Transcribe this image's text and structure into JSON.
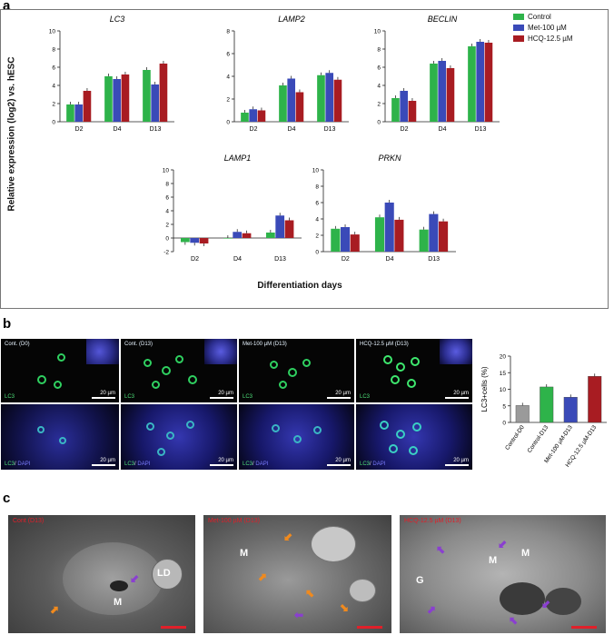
{
  "figure": {
    "panel_a": "a",
    "panel_b": "b",
    "panel_c": "c",
    "ylabel_a": "Relative expression (log2) vs. hESC",
    "xlabel_a": "Differentiation days"
  },
  "legend": [
    {
      "label": "Control",
      "color": "#2eb34a"
    },
    {
      "label": "Met-100 µM",
      "color": "#3a4ab8"
    },
    {
      "label": "HCQ-12.5 µM",
      "color": "#a81c22"
    }
  ],
  "colors": {
    "control": "#2eb34a",
    "met": "#3a4ab8",
    "hcq": "#a81c22",
    "gray": "#9a9a9a"
  },
  "chart_data": [
    {
      "type": "bar",
      "title": "LC3",
      "categories": [
        "D2",
        "D4",
        "D13"
      ],
      "ylim": [
        0,
        10
      ],
      "ticks": [
        0,
        2,
        4,
        6,
        8,
        10
      ],
      "series": [
        {
          "name": "Control",
          "values": [
            1.9,
            5.0,
            5.7
          ]
        },
        {
          "name": "Met-100 µM",
          "values": [
            1.9,
            4.7,
            4.1
          ]
        },
        {
          "name": "HCQ-12.5 µM",
          "values": [
            3.4,
            5.2,
            6.4
          ]
        }
      ]
    },
    {
      "type": "bar",
      "title": "LAMP2",
      "categories": [
        "D2",
        "D4",
        "D13"
      ],
      "ylim": [
        0,
        8
      ],
      "ticks": [
        0,
        2,
        4,
        6,
        8
      ],
      "series": [
        {
          "name": "Control",
          "values": [
            0.8,
            3.2,
            4.1
          ]
        },
        {
          "name": "Met-100 µM",
          "values": [
            1.1,
            3.8,
            4.3
          ]
        },
        {
          "name": "HCQ-12.5 µM",
          "values": [
            1.0,
            2.6,
            3.7
          ]
        }
      ]
    },
    {
      "type": "bar",
      "title": "BECLIN",
      "categories": [
        "D2",
        "D4",
        "D13"
      ],
      "ylim": [
        0,
        10
      ],
      "ticks": [
        0,
        2,
        4,
        6,
        8,
        10
      ],
      "series": [
        {
          "name": "Control",
          "values": [
            2.6,
            6.4,
            8.3
          ]
        },
        {
          "name": "Met-100 µM",
          "values": [
            3.4,
            6.7,
            8.8
          ]
        },
        {
          "name": "HCQ-12.5 µM",
          "values": [
            2.3,
            5.9,
            8.7
          ]
        }
      ]
    },
    {
      "type": "bar",
      "title": "LAMP1",
      "categories": [
        "D2",
        "D4",
        "D13"
      ],
      "ylim": [
        -2,
        10
      ],
      "ticks": [
        -2,
        0,
        2,
        4,
        6,
        8,
        10
      ],
      "series": [
        {
          "name": "Control",
          "values": [
            -0.6,
            0.0,
            0.8
          ]
        },
        {
          "name": "Met-100 µM",
          "values": [
            -0.7,
            0.9,
            3.3
          ]
        },
        {
          "name": "HCQ-12.5 µM",
          "values": [
            -0.8,
            0.7,
            2.6
          ]
        }
      ]
    },
    {
      "type": "bar",
      "title": "PRKN",
      "categories": [
        "D2",
        "D4",
        "D13"
      ],
      "ylim": [
        0,
        10
      ],
      "ticks": [
        0,
        2,
        4,
        6,
        8,
        10
      ],
      "series": [
        {
          "name": "Control",
          "values": [
            2.8,
            4.2,
            2.7
          ]
        },
        {
          "name": "Met-100 µM",
          "values": [
            3.0,
            6.0,
            4.6
          ]
        },
        {
          "name": "HCQ-12.5 µM",
          "values": [
            2.1,
            3.9,
            3.7
          ]
        }
      ]
    },
    {
      "type": "bar",
      "title": "",
      "ylabel": "LC3+cells (%)",
      "categories": [
        "Control-D0",
        "Control-D13",
        "Met-100 µM-D13",
        "HCQ-12.5 µM-D13"
      ],
      "ylim": [
        0,
        20
      ],
      "ticks": [
        0,
        5,
        10,
        15,
        20
      ],
      "values": [
        5.1,
        10.7,
        7.6,
        13.9
      ]
    }
  ],
  "micro_panels": [
    {
      "label": "Cont. (D0)"
    },
    {
      "label": "Cont. (D13)"
    },
    {
      "label": "Met-100 µM (D13)"
    },
    {
      "label": "HCQ-12.5 µM (D13)"
    }
  ],
  "micro_text": {
    "lc3": "LC3",
    "sep": "/",
    "dapi": "DAPI",
    "scale": "20 µm"
  },
  "tem_panels": [
    {
      "label": "Cont (D13)",
      "marks": [
        "LD",
        "M"
      ]
    },
    {
      "label": "Met-100 µM (D13)",
      "marks": [
        "M"
      ]
    },
    {
      "label": "HCQ-12.5 µM (D13)",
      "marks": [
        "M",
        "M",
        "G"
      ]
    }
  ]
}
